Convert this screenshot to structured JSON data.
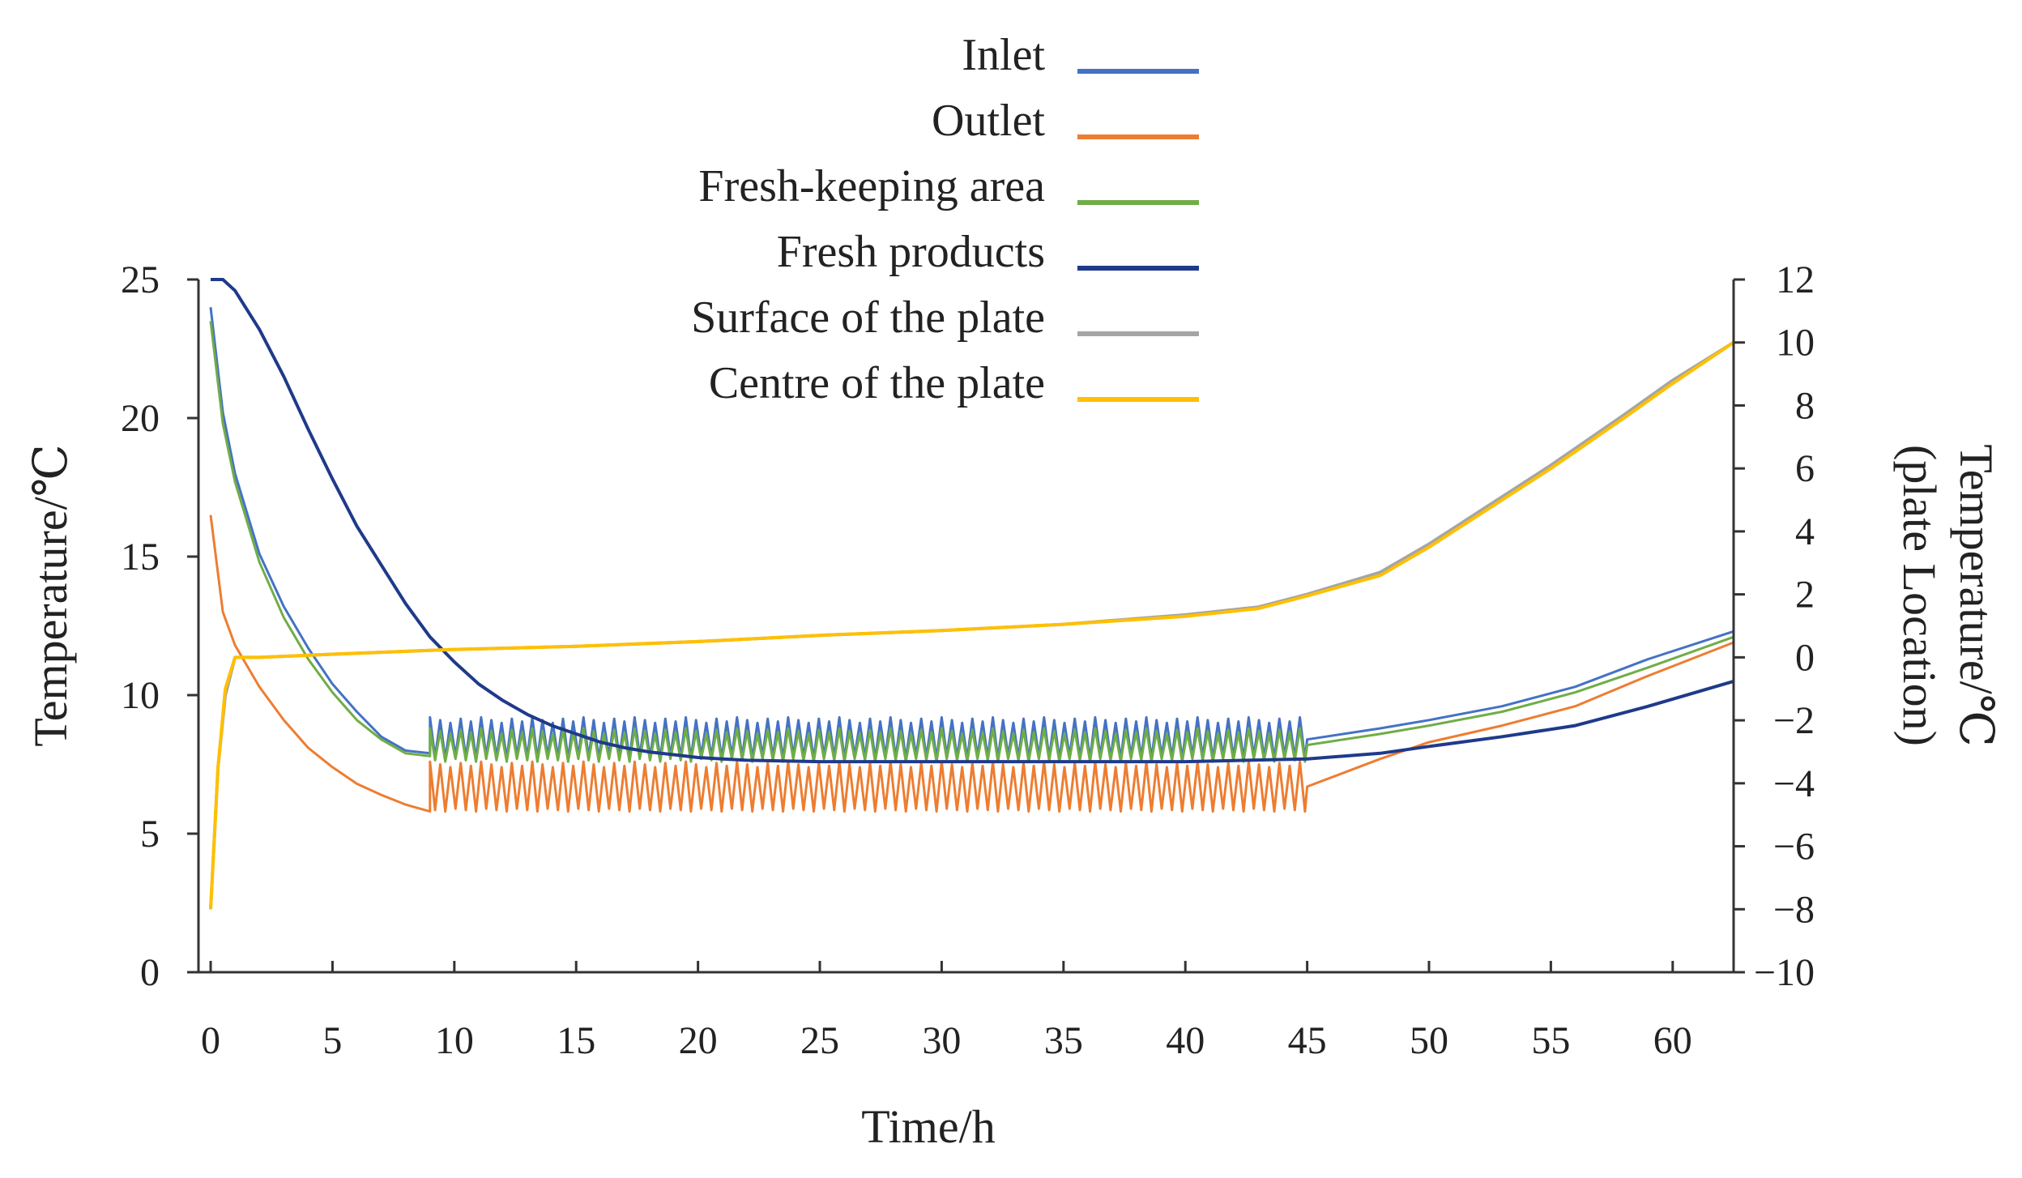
{
  "chart_data": {
    "type": "line",
    "xlabel": "Time/h",
    "ylabel": "Temperature/℃",
    "y2label_line1": "Temperature/℃",
    "y2label_line2": "(plate Location)",
    "xlim": [
      -0.5,
      62.5
    ],
    "ylim": [
      0,
      25
    ],
    "y2lim": [
      -10,
      12
    ],
    "xticks": [
      0,
      5,
      10,
      15,
      20,
      25,
      30,
      35,
      40,
      45,
      50,
      55,
      60
    ],
    "yticks": [
      0,
      5,
      10,
      15,
      20,
      25
    ],
    "y2ticks": [
      -10,
      -8,
      -6,
      -4,
      -2,
      0,
      2,
      4,
      6,
      8,
      10,
      12
    ],
    "legend_position": "top-center",
    "series": [
      {
        "name": "Inlet",
        "color": "#4472C4",
        "axis": "left",
        "points": [
          [
            0,
            24
          ],
          [
            0.5,
            20.2
          ],
          [
            1,
            18
          ],
          [
            2,
            15.1
          ],
          [
            3,
            13.2
          ],
          [
            4,
            11.7
          ],
          [
            5,
            10.4
          ],
          [
            6,
            9.4
          ],
          [
            7,
            8.5
          ],
          [
            8,
            8.0
          ],
          [
            9,
            7.9
          ]
        ],
        "oscillation": {
          "start": 9,
          "end": 45,
          "low": 7.7,
          "high": 9.2
        },
        "tail": [
          [
            45,
            8.4
          ],
          [
            48,
            8.8
          ],
          [
            50,
            9.1
          ],
          [
            53,
            9.6
          ],
          [
            56,
            10.3
          ],
          [
            59,
            11.3
          ],
          [
            62.5,
            12.3
          ]
        ]
      },
      {
        "name": "Outlet",
        "color": "#ED7D31",
        "axis": "left",
        "points": [
          [
            0,
            16.5
          ],
          [
            0.5,
            13
          ],
          [
            1,
            11.8
          ],
          [
            2,
            10.3
          ],
          [
            3,
            9.1
          ],
          [
            4,
            8.1
          ],
          [
            5,
            7.4
          ],
          [
            6,
            6.8
          ],
          [
            7,
            6.4
          ],
          [
            8,
            6.05
          ],
          [
            9,
            5.8
          ]
        ],
        "oscillation": {
          "start": 9,
          "end": 45,
          "low": 5.8,
          "high": 7.6
        },
        "tail": [
          [
            45,
            6.7
          ],
          [
            48,
            7.7
          ],
          [
            50,
            8.3
          ],
          [
            53,
            8.9
          ],
          [
            56,
            9.6
          ],
          [
            59,
            10.7
          ],
          [
            62.5,
            11.9
          ]
        ]
      },
      {
        "name": "Fresh-keeping area",
        "color": "#70AD47",
        "axis": "left",
        "points": [
          [
            0,
            23.5
          ],
          [
            0.5,
            19.8
          ],
          [
            1,
            17.7
          ],
          [
            2,
            14.8
          ],
          [
            3,
            12.8
          ],
          [
            4,
            11.3
          ],
          [
            5,
            10.1
          ],
          [
            6,
            9.1
          ],
          [
            7,
            8.4
          ],
          [
            8,
            7.9
          ],
          [
            9,
            7.8
          ]
        ],
        "oscillation": {
          "start": 9,
          "end": 45,
          "low": 7.6,
          "high": 8.8
        },
        "tail": [
          [
            45,
            8.2
          ],
          [
            48,
            8.6
          ],
          [
            50,
            8.9
          ],
          [
            53,
            9.4
          ],
          [
            56,
            10.1
          ],
          [
            59,
            11.0
          ],
          [
            62.5,
            12.1
          ]
        ]
      },
      {
        "name": "Fresh products",
        "color": "#1F3A8A",
        "axis": "left",
        "points": [
          [
            0,
            25
          ],
          [
            0.5,
            25
          ],
          [
            1,
            24.6
          ],
          [
            2,
            23.2
          ],
          [
            3,
            21.5
          ],
          [
            4,
            19.6
          ],
          [
            5,
            17.8
          ],
          [
            6,
            16.1
          ],
          [
            7,
            14.7
          ],
          [
            8,
            13.3
          ],
          [
            9,
            12.1
          ],
          [
            10,
            11.2
          ],
          [
            11,
            10.4
          ],
          [
            12,
            9.8
          ],
          [
            13,
            9.3
          ],
          [
            14,
            8.9
          ],
          [
            15,
            8.6
          ],
          [
            16,
            8.3
          ],
          [
            17,
            8.1
          ],
          [
            18,
            7.95
          ],
          [
            19,
            7.85
          ],
          [
            20,
            7.75
          ],
          [
            21,
            7.7
          ],
          [
            22,
            7.65
          ],
          [
            25,
            7.6
          ],
          [
            30,
            7.6
          ],
          [
            35,
            7.6
          ],
          [
            40,
            7.6
          ],
          [
            45,
            7.7
          ],
          [
            48,
            7.9
          ],
          [
            50,
            8.15
          ],
          [
            53,
            8.5
          ],
          [
            56,
            8.9
          ],
          [
            59,
            9.6
          ],
          [
            62.5,
            10.5
          ]
        ]
      },
      {
        "name": "Surface of the plate",
        "color": "#A5A5A5",
        "axis": "right",
        "points": [
          [
            0,
            -8
          ],
          [
            0.3,
            -3.5
          ],
          [
            0.6,
            -1.2
          ],
          [
            1,
            0
          ],
          [
            2,
            0
          ],
          [
            5,
            0.1
          ],
          [
            10,
            0.25
          ],
          [
            15,
            0.35
          ],
          [
            20,
            0.5
          ],
          [
            25,
            0.7
          ],
          [
            30,
            0.85
          ],
          [
            35,
            1.05
          ],
          [
            40,
            1.35
          ],
          [
            43,
            1.6
          ],
          [
            45,
            2.0
          ],
          [
            48,
            2.7
          ],
          [
            50,
            3.6
          ],
          [
            52,
            4.6
          ],
          [
            55,
            6.1
          ],
          [
            58,
            7.7
          ],
          [
            60,
            8.8
          ],
          [
            62.5,
            10.0
          ]
        ]
      },
      {
        "name": "Centre of the plate",
        "color": "#FFC000",
        "axis": "right",
        "points": [
          [
            0,
            -8
          ],
          [
            0.3,
            -3.5
          ],
          [
            0.6,
            -1.0
          ],
          [
            1,
            0
          ],
          [
            2,
            0
          ],
          [
            5,
            0.1
          ],
          [
            10,
            0.25
          ],
          [
            15,
            0.35
          ],
          [
            20,
            0.5
          ],
          [
            25,
            0.7
          ],
          [
            30,
            0.85
          ],
          [
            35,
            1.05
          ],
          [
            40,
            1.3
          ],
          [
            43,
            1.55
          ],
          [
            45,
            1.95
          ],
          [
            48,
            2.6
          ],
          [
            50,
            3.5
          ],
          [
            52,
            4.5
          ],
          [
            55,
            6.0
          ],
          [
            58,
            7.6
          ],
          [
            60,
            8.7
          ],
          [
            62.5,
            10.0
          ]
        ]
      }
    ]
  }
}
